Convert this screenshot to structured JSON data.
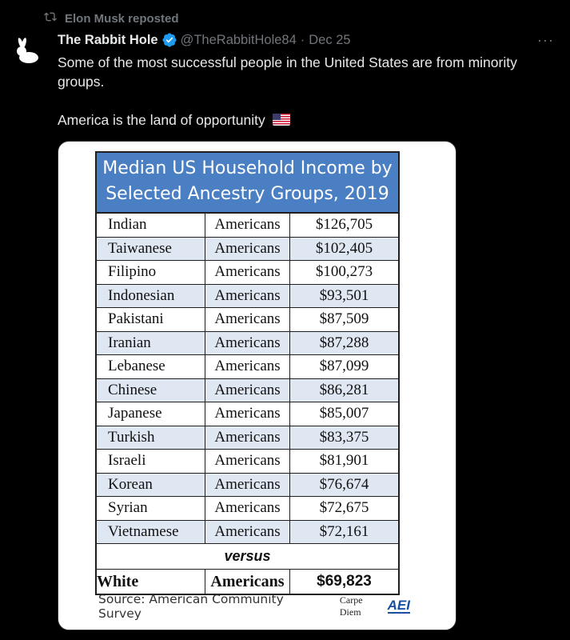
{
  "repost": {
    "label": "Elon Musk reposted",
    "icon": "repost-icon"
  },
  "post": {
    "author": "The Rabbit Hole",
    "handle": "@TheRabbitHole84",
    "separator": "·",
    "date": "Dec 25",
    "more": "···",
    "text_line1": "Some of the most successful people in the United States are from minority groups.",
    "text_line2": "America is the land of opportunity",
    "flag_icon": "us-flag-icon"
  },
  "media": {
    "title_line1": "Median US Household Income by",
    "title_line2": "Selected Ancestry Groups, 2019",
    "rows": [
      {
        "group": "Indian",
        "label": "Americans",
        "income": "$126,705"
      },
      {
        "group": "Taiwanese",
        "label": "Americans",
        "income": "$102,405"
      },
      {
        "group": "Filipino",
        "label": "Americans",
        "income": "$100,273"
      },
      {
        "group": "Indonesian",
        "label": "Americans",
        "income": "$93,501"
      },
      {
        "group": "Pakistani",
        "label": "Americans",
        "income": "$87,509"
      },
      {
        "group": "Iranian",
        "label": "Americans",
        "income": "$87,288"
      },
      {
        "group": "Lebanese",
        "label": "Americans",
        "income": "$87,099"
      },
      {
        "group": "Chinese",
        "label": "Americans",
        "income": "$86,281"
      },
      {
        "group": "Japanese",
        "label": "Americans",
        "income": "$85,007"
      },
      {
        "group": "Turkish",
        "label": "Americans",
        "income": "$83,375"
      },
      {
        "group": "Israeli",
        "label": "Americans",
        "income": "$81,901"
      },
      {
        "group": "Korean",
        "label": "Americans",
        "income": "$76,674"
      },
      {
        "group": "Syrian",
        "label": "Americans",
        "income": "$72,675"
      },
      {
        "group": "Vietnamese",
        "label": "Americans",
        "income": "$72,161"
      }
    ],
    "versus": "versus",
    "white_row": {
      "group": "White",
      "label": "Americans",
      "income": "$69,823"
    },
    "source": "Source: American Community Survey",
    "carpe_diem": "Carpe Diem",
    "aei": "AEI"
  },
  "colors": {
    "background": "#000000",
    "muted": "#71767b",
    "verified": "#1d9bf0",
    "table_header": "#4a7fc3",
    "row_alt": "#dfe7f2"
  }
}
